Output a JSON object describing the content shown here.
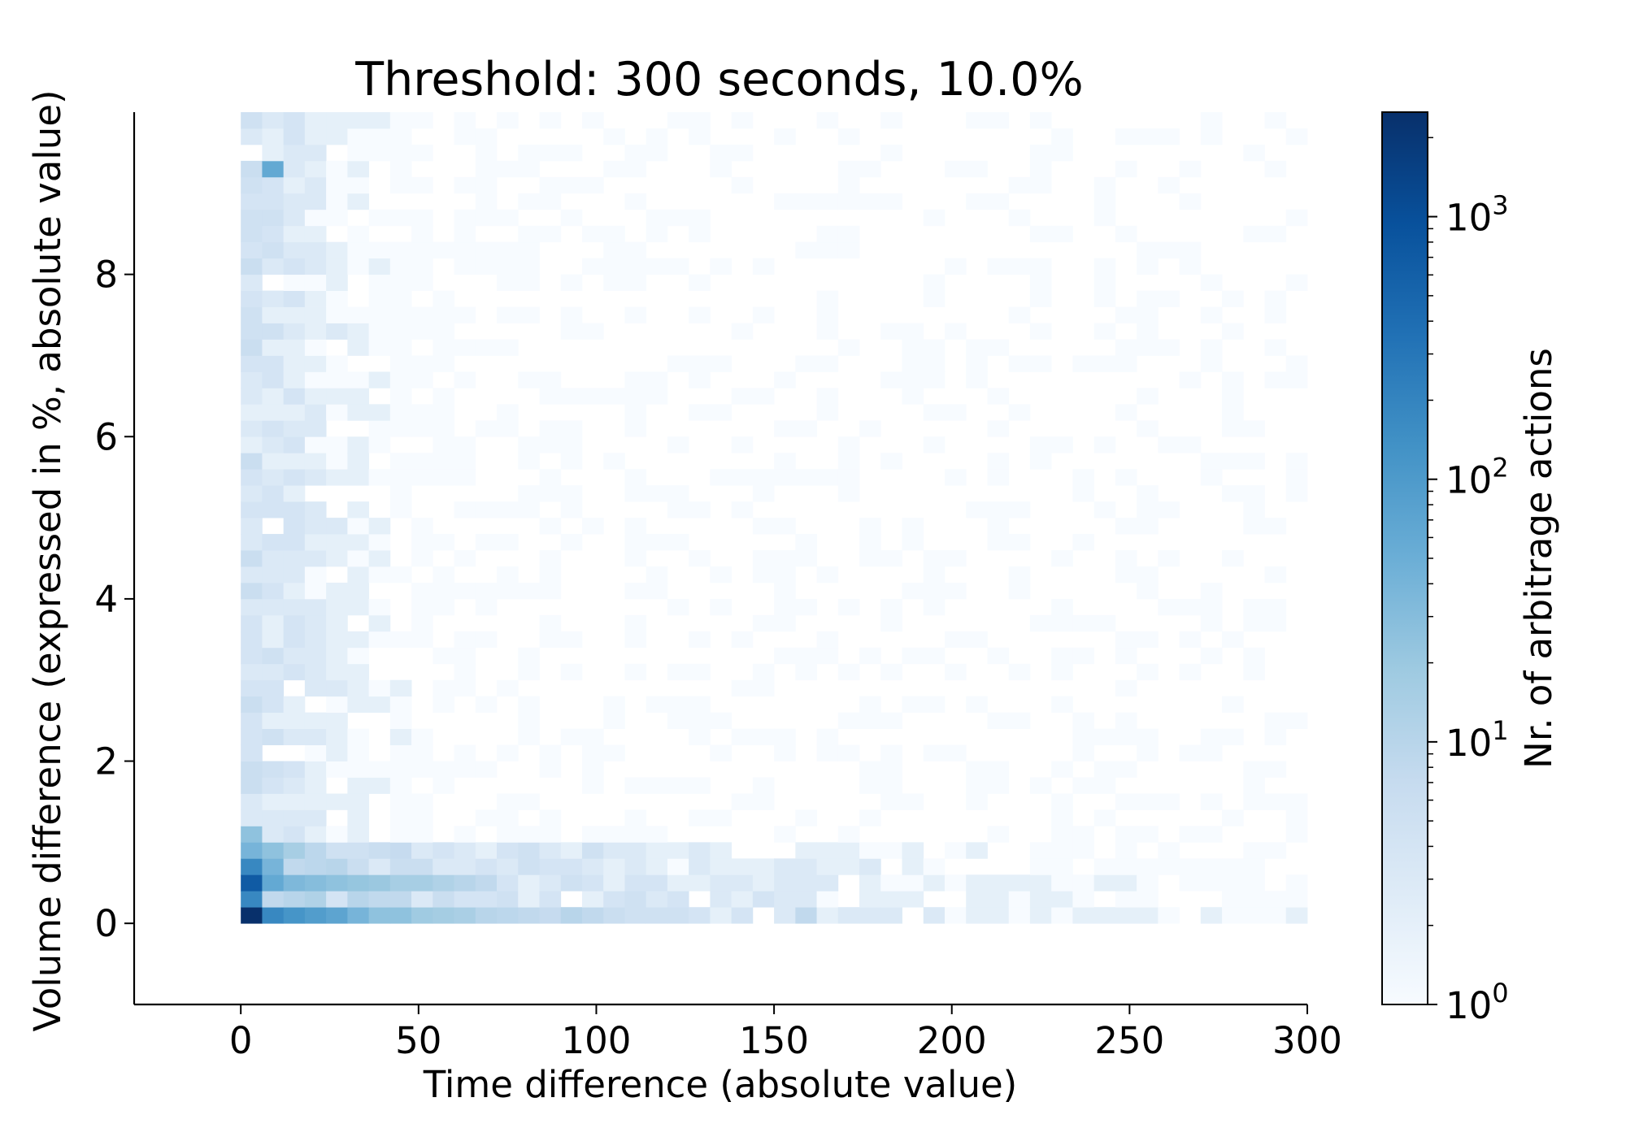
{
  "chart_data": {
    "type": "heatmap",
    "title": "Threshold: 300 seconds, 10.0%",
    "xlabel": "Time difference (absolute value)",
    "ylabel": "Volume difference (expressed in %, absolute value)",
    "colorbar_label": "Nr. of arbitrage actions",
    "colorbar_scale": "log",
    "colorbar_range": [
      1,
      2500
    ],
    "colorbar_ticks": [
      {
        "value": 1,
        "base": "10",
        "exp": "0"
      },
      {
        "value": 10,
        "base": "10",
        "exp": "1"
      },
      {
        "value": 100,
        "base": "10",
        "exp": "2"
      },
      {
        "value": 1000,
        "base": "10",
        "exp": "3"
      }
    ],
    "colormap": [
      "#f7fbff",
      "#deebf7",
      "#c6dbef",
      "#9ecae1",
      "#6baed6",
      "#4292c6",
      "#2171b5",
      "#08519c",
      "#08306b"
    ],
    "xlim": [
      -30,
      300
    ],
    "ylim": [
      -1,
      10
    ],
    "xticks": [
      0,
      50,
      100,
      150,
      200,
      250,
      300
    ],
    "yticks": [
      0,
      2,
      4,
      6,
      8
    ],
    "bins_x": {
      "start": 0,
      "end": 300,
      "count": 50
    },
    "bins_y": {
      "start": 0,
      "end": 10,
      "count": 50
    },
    "counts_summary": {
      "peak": {
        "x_range": [
          0,
          6
        ],
        "y_range": [
          0,
          0.2
        ],
        "count": 2500
      },
      "notable_cells": [
        {
          "x_range": [
            0,
            6
          ],
          "y_range": [
            0.4,
            0.6
          ],
          "count": 700
        },
        {
          "x_range": [
            0,
            6
          ],
          "y_range": [
            0.2,
            0.4
          ],
          "count": 180
        },
        {
          "x_range": [
            6,
            12
          ],
          "y_range": [
            0,
            0.2
          ],
          "count": 180
        },
        {
          "x_range": [
            6,
            12
          ],
          "y_range": [
            9.2,
            9.4
          ],
          "count": 60
        },
        {
          "x_range": [
            0,
            6
          ],
          "y_range": [
            0.8,
            1.0
          ],
          "count": 40
        }
      ],
      "background_count": 1
    },
    "grid": false,
    "legend": "none"
  }
}
